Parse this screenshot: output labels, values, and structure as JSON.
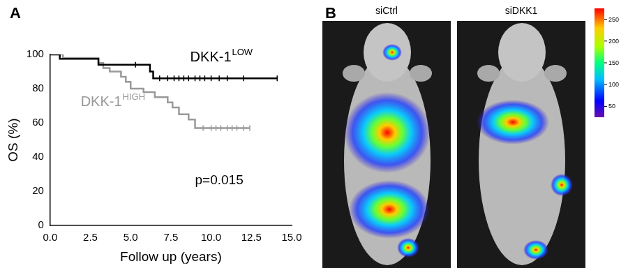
{
  "chart_data": {
    "type": "line",
    "xlabel": "Follow up (years)",
    "ylabel": "OS (%)",
    "xlim": [
      0,
      15
    ],
    "xticks": [
      {
        "value": 0,
        "label": "0.0"
      },
      {
        "value": 2.5,
        "label": "2.5"
      },
      {
        "value": 5,
        "label": "5.0"
      },
      {
        "value": 7.5,
        "label": "7.5"
      },
      {
        "value": 10,
        "label": "10.0"
      },
      {
        "value": 12.5,
        "label": "12.5"
      },
      {
        "value": 15,
        "label": "15.0"
      }
    ],
    "ylim": [
      0,
      100
    ],
    "yticks": [
      0,
      20,
      40,
      60,
      80,
      100
    ],
    "grid": false,
    "annotations": [
      "p=0.015"
    ],
    "series": [
      {
        "name": "DKK-1LOW",
        "color": "#000000",
        "line_style": "stepped",
        "x": [
          0,
          0.6,
          3.0,
          6.2,
          6.4,
          14.1
        ],
        "values": [
          100,
          97.5,
          94,
          90,
          86,
          86
        ],
        "censored": [
          5.3,
          6.8,
          7.3,
          7.7,
          8.0,
          8.3,
          8.6,
          9.0,
          9.3,
          9.6,
          10.0,
          10.5,
          11.0,
          12.0,
          14.1
        ]
      },
      {
        "name": "DKK-1HIGH",
        "color": "#999999",
        "line_style": "stepped",
        "x": [
          0,
          0.8,
          3.0,
          3.3,
          3.7,
          4.4,
          4.7,
          5.0,
          5.8,
          6.5,
          7.3,
          7.6,
          8.0,
          8.6,
          9.0,
          12.4
        ],
        "values": [
          100,
          98,
          95,
          92,
          90,
          87,
          84,
          80,
          78,
          75,
          72,
          69,
          65,
          62,
          57,
          57
        ],
        "censored": [
          9.5,
          10.0,
          10.3,
          10.6,
          11.0,
          11.3,
          11.6,
          12.0,
          12.4
        ]
      }
    ]
  },
  "panel_labels": [
    "A",
    "B"
  ],
  "images": {
    "labels": [
      "siCtrl",
      "siDKK1"
    ],
    "colorbar": {
      "range": [
        25,
        275
      ],
      "ticks": [
        50,
        100,
        150,
        200,
        250
      ]
    }
  }
}
